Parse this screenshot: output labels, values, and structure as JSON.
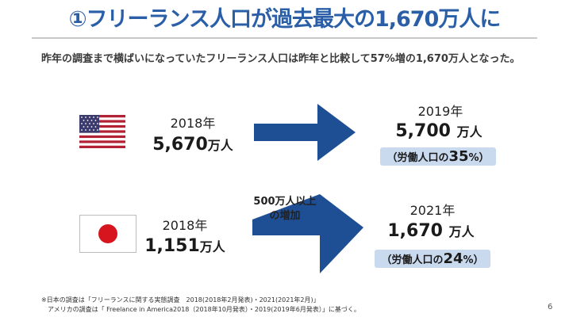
{
  "title": "①フリーランス人口が過去最大の1,670万人に",
  "lead": "昨年の調査まで横ばいになっていたフリーランス人口は昨年と比較して57%増の1,670万人となった。",
  "us": {
    "before_year": "2018年",
    "before_value": "5,670",
    "before_unit": "万人",
    "after_year": "2019年",
    "after_value": "5,700",
    "after_unit": "万人",
    "share_prefix": "（労働人口の",
    "share_pct": "35",
    "share_suffix": "%）"
  },
  "jp": {
    "before_year": "2018年",
    "before_value": "1,151",
    "before_unit": "万人",
    "after_year": "2021年",
    "after_value": "1,670",
    "after_unit": "万人",
    "share_prefix": "（労働人口の",
    "share_pct": "24",
    "share_suffix": "%）",
    "increase_line1": "500万人以上",
    "increase_line2": "の増加"
  },
  "footnotes": [
    "※日本の調査は「フリーランスに関する実態調査　2018(2018年2月発表)・2021(2021年2月)」",
    "　アメリカの調査は「 Freelance in America2018（2018年10月発表）・2019(2019年6月発表）」に基づく。"
  ],
  "page_number": "6",
  "colors": {
    "title_blue": "#2a5fa8",
    "arrow_blue": "#1e4e93",
    "badge_bg": "#c9d9ee",
    "jp_red": "#d7151f",
    "us_red": "#b22234",
    "us_blue": "#3c3b6e"
  },
  "icons": {
    "us": "us-flag-icon",
    "jp": "japan-flag-icon"
  }
}
